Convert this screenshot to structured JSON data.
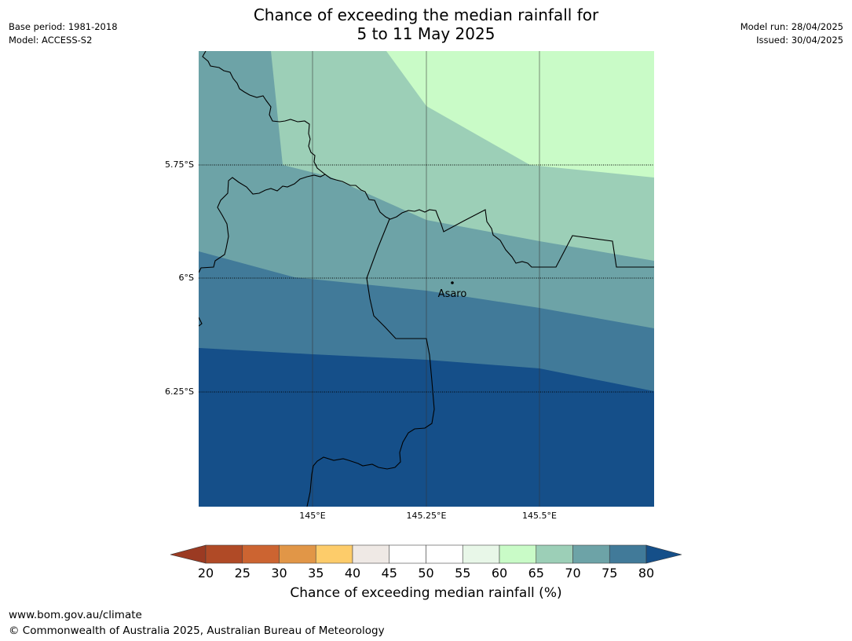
{
  "title": {
    "line1": "Chance of exceeding the median rainfall for",
    "line2": "5 to 11 May 2025"
  },
  "meta_left": {
    "base_period": "Base period: 1981-2018",
    "model": "Model: ACCESS-S2"
  },
  "meta_right": {
    "model_run": "Model run: 28/04/2025",
    "issued": "Issued: 30/04/2025"
  },
  "map": {
    "place_label": "Asaro",
    "lat_labels": [
      "5.75°S",
      "6°S",
      "6.25°S"
    ],
    "lon_labels": [
      "145°E",
      "145.25°E",
      "145.5°E"
    ],
    "colors": {
      "band_80_plus": "#154f89",
      "band_75_80": "#417a99",
      "band_70_75": "#6da3a7",
      "band_65_70": "#9ccfb7",
      "band_60_65": "#c9fbc7"
    }
  },
  "colorbar": {
    "title": "Chance of exceeding median rainfall (%)",
    "ticks": [
      "20",
      "25",
      "30",
      "35",
      "40",
      "45",
      "50",
      "55",
      "60",
      "65",
      "70",
      "75",
      "80"
    ],
    "colors": [
      "#b04a26",
      "#cc6431",
      "#e19647",
      "#fdcc6a",
      "#efe9e5",
      "#ffffff",
      "#ffffff",
      "#e8f7e8",
      "#c9fbc7",
      "#9ccfb7",
      "#6da3a7",
      "#417a99"
    ],
    "under_color": "#9b3a22",
    "over_color": "#154f89"
  },
  "footer": {
    "url": "www.bom.gov.au/climate",
    "copyright": "© Commonwealth of Australia 2025, Australian Bureau of Meteorology"
  }
}
